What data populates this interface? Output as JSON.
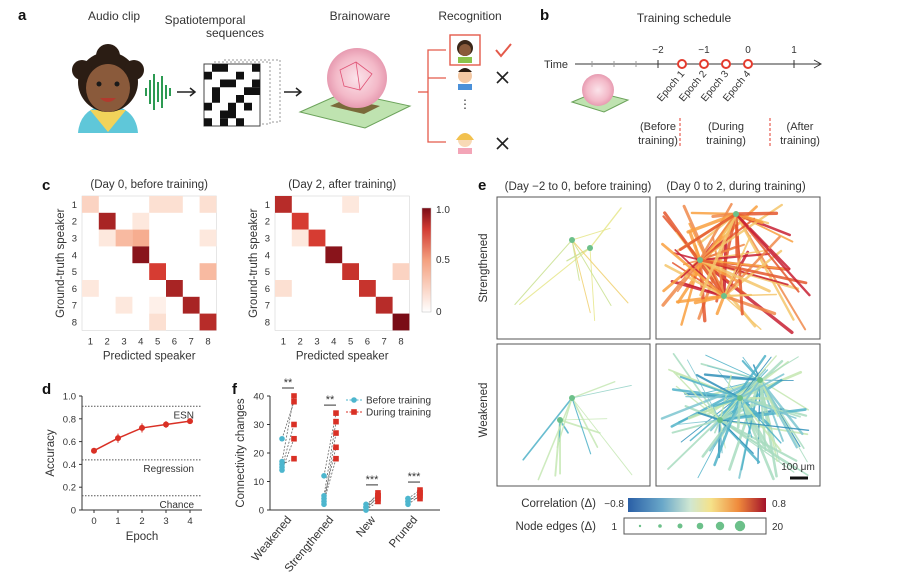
{
  "panels": {
    "a": {
      "letter": "a",
      "titles": {
        "audio": "Audio clip",
        "seq1": "Spatiotemporal",
        "seq2": "sequences",
        "brain": "Brainoware",
        "recog": "Recognition"
      },
      "dots": "⋮"
    },
    "b": {
      "letter": "b",
      "title": "Training schedule",
      "time_label": "Time",
      "ticks": [
        "−2",
        "−1",
        "0",
        "1"
      ],
      "epochs": [
        "Epoch 1",
        "Epoch 2",
        "Epoch 3",
        "Epoch 4"
      ],
      "phases": [
        [
          "(Before",
          "training)"
        ],
        [
          "(During",
          "training)"
        ],
        [
          "(After",
          "training)"
        ]
      ]
    },
    "c": {
      "letter": "c",
      "titles": [
        "(Day 0, before training)",
        "(Day 2, after training)"
      ],
      "xlabel": "Predicted speaker",
      "ylabel": "Ground-truth speaker",
      "ticks": [
        "1",
        "2",
        "3",
        "4",
        "5",
        "6",
        "7",
        "8"
      ],
      "colorbar_ticks": [
        "1.0",
        "0.5",
        "0"
      ],
      "matrices": [
        [
          [
            0.25,
            0,
            0,
            0,
            0.2,
            0.2,
            0,
            0.2
          ],
          [
            0,
            0.85,
            0,
            0.15,
            0,
            0,
            0,
            0
          ],
          [
            0,
            0.15,
            0.35,
            0.4,
            0,
            0,
            0,
            0.15
          ],
          [
            0,
            0,
            0,
            0.95,
            0,
            0,
            0,
            0
          ],
          [
            0,
            0,
            0,
            0,
            0.7,
            0,
            0,
            0.35
          ],
          [
            0.15,
            0,
            0,
            0,
            0,
            0.85,
            0,
            0
          ],
          [
            0,
            0,
            0.15,
            0,
            0.1,
            0,
            0.85,
            0
          ],
          [
            0,
            0,
            0,
            0,
            0.2,
            0,
            0,
            0.8
          ]
        ],
        [
          [
            0.8,
            0,
            0,
            0,
            0.15,
            0,
            0,
            0
          ],
          [
            0,
            0.7,
            0,
            0,
            0,
            0,
            0,
            0
          ],
          [
            0,
            0.15,
            0.7,
            0,
            0,
            0,
            0,
            0
          ],
          [
            0,
            0,
            0,
            0.95,
            0,
            0,
            0,
            0
          ],
          [
            0,
            0,
            0,
            0,
            0.75,
            0,
            0,
            0.25
          ],
          [
            0.2,
            0,
            0,
            0,
            0,
            0.75,
            0,
            0
          ],
          [
            0,
            0,
            0,
            0,
            0,
            0,
            0.8,
            0
          ],
          [
            0,
            0,
            0,
            0,
            0,
            0,
            0,
            1.0
          ]
        ]
      ]
    },
    "d": {
      "letter": "d",
      "ylabel": "Accuracy",
      "xlabel": "Epoch",
      "yticks": [
        "0",
        "0.2",
        "0.4",
        "0.6",
        "0.8",
        "1.0"
      ],
      "xticks": [
        "0",
        "1",
        "2",
        "3",
        "4"
      ],
      "refs": [
        {
          "label": "ESN",
          "value": 0.91
        },
        {
          "label": "Regression",
          "value": 0.44
        },
        {
          "label": "Chance",
          "value": 0.125
        }
      ]
    },
    "e": {
      "letter": "e",
      "titles": [
        "(Day −2 to 0, before training)",
        "(Day 0 to 2, during training)"
      ],
      "row_labels": [
        "Strengthened",
        "Weakened"
      ],
      "scalebar": "100 μm",
      "corr_label": "Correlation (Δ)",
      "corr_min": "−0.8",
      "corr_max": "0.8",
      "node_label": "Node edges (Δ)",
      "node_min": "1",
      "node_max": "20"
    },
    "f": {
      "letter": "f",
      "ylabel": "Connectivity changes",
      "yticks": [
        "0",
        "10",
        "20",
        "30",
        "40"
      ],
      "legend": [
        "Before training",
        "During training"
      ],
      "sig": "**",
      "sig3": "***"
    }
  },
  "chart_data": [
    {
      "type": "line",
      "title": "",
      "xlabel": "Epoch",
      "ylabel": "Accuracy",
      "x": [
        0,
        1,
        2,
        3,
        4
      ],
      "values": [
        0.52,
        0.63,
        0.72,
        0.75,
        0.78
      ],
      "errors": [
        0.02,
        0.04,
        0.04,
        0.03,
        0.02
      ],
      "ylim": [
        0,
        1.0
      ]
    },
    {
      "type": "scatter",
      "title": "",
      "ylabel": "Connectivity changes",
      "categories": [
        "Weakened",
        "Strengthened",
        "New",
        "Pruned"
      ],
      "series": [
        {
          "name": "Before training",
          "values": [
            [
              25,
              17,
              15,
              14,
              16
            ],
            [
              12,
              5,
              2,
              4,
              3
            ],
            [
              1,
              0,
              1,
              0,
              2
            ],
            [
              4,
              2,
              3,
              4,
              3
            ]
          ]
        },
        {
          "name": "During training",
          "values": [
            [
              38,
              40,
              30,
              25,
              18
            ],
            [
              34,
              31,
              27,
              22,
              18
            ],
            [
              6,
              5,
              4,
              3,
              5
            ],
            [
              7,
              5,
              6,
              4,
              6
            ]
          ]
        }
      ],
      "sig_labels": [
        "**",
        "**",
        "***",
        "***"
      ],
      "ylim": [
        0,
        40
      ]
    }
  ],
  "colors": {
    "accent": "#d93025",
    "teal": "#4db6ce",
    "heat_max": "#7a0c16"
  }
}
